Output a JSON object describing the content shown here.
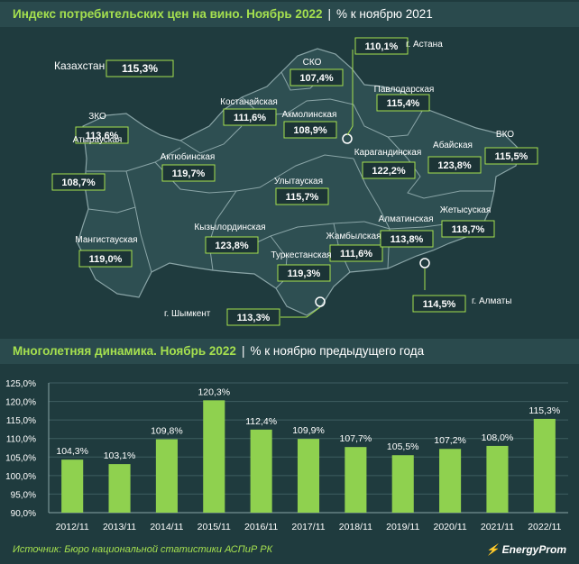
{
  "map_header": {
    "title": "Индекс потребительских цен на вино. Ноябрь 2022",
    "subtitle": "% к ноябрю 2021"
  },
  "bar_header": {
    "title": "Многолетняя динамика. Ноябрь 2022",
    "subtitle": "% к ноябрю предыдущего года"
  },
  "source": "Источник: Бюро национальной статистики АСПиР РК",
  "logo": "EnergyProm",
  "regions": [
    {
      "name": "Казахстан",
      "value": "115,3%"
    },
    {
      "name": "СКО",
      "value": "107,4%"
    },
    {
      "name": "г. Астана",
      "value": "110,1%"
    },
    {
      "name": "Павлодарская",
      "value": "115,4%"
    },
    {
      "name": "Костанайская",
      "value": "111,6%"
    },
    {
      "name": "Акмолинская",
      "value": "108,9%"
    },
    {
      "name": "ЗКО",
      "value": "113,6%"
    },
    {
      "name": "Атырауская",
      "value": "108,7%"
    },
    {
      "name": "Актюбинская",
      "value": "119,7%"
    },
    {
      "name": "Карагандинская",
      "value": "122,2%"
    },
    {
      "name": "Абайская",
      "value": "123,8%"
    },
    {
      "name": "ВКО",
      "value": "115,5%"
    },
    {
      "name": "Улытауская",
      "value": "115,7%"
    },
    {
      "name": "Жетысуская",
      "value": "118,7%"
    },
    {
      "name": "Кызылординская",
      "value": "123,8%"
    },
    {
      "name": "Жамбылская",
      "value": "111,6%"
    },
    {
      "name": "Алматинская",
      "value": "113,8%"
    },
    {
      "name": "Мангистауская",
      "value": "119,0%"
    },
    {
      "name": "Туркестанская",
      "value": "119,3%"
    },
    {
      "name": "г. Алматы",
      "value": "114,5%"
    },
    {
      "name": "г. Шымкент",
      "value": "113,3%"
    }
  ],
  "chart_data": {
    "type": "bar",
    "categories": [
      "2012/11",
      "2013/11",
      "2014/11",
      "2015/11",
      "2016/11",
      "2017/11",
      "2018/11",
      "2019/11",
      "2020/11",
      "2021/11",
      "2022/11"
    ],
    "values": [
      104.3,
      103.1,
      109.8,
      120.3,
      112.4,
      109.9,
      107.7,
      105.5,
      107.2,
      108.0,
      115.3
    ],
    "value_labels": [
      "104,3%",
      "103,1%",
      "109,8%",
      "120,3%",
      "112,4%",
      "109,9%",
      "107,7%",
      "105,5%",
      "107,2%",
      "108,0%",
      "115,3%"
    ],
    "yticks": [
      "90,0%",
      "95,0%",
      "100,0%",
      "105,0%",
      "110,0%",
      "115,0%",
      "120,0%",
      "125,0%"
    ],
    "ylim": [
      90,
      125
    ],
    "title": "Многолетняя динамика. Ноябрь 2022",
    "xlabel": "",
    "ylabel": "",
    "colors": {
      "bar": "#8fd14f",
      "accent": "#a5e04f",
      "map_fill": "#2e4f52",
      "map_border": "#8aa5a7",
      "label_bg": "#1c3436"
    }
  }
}
